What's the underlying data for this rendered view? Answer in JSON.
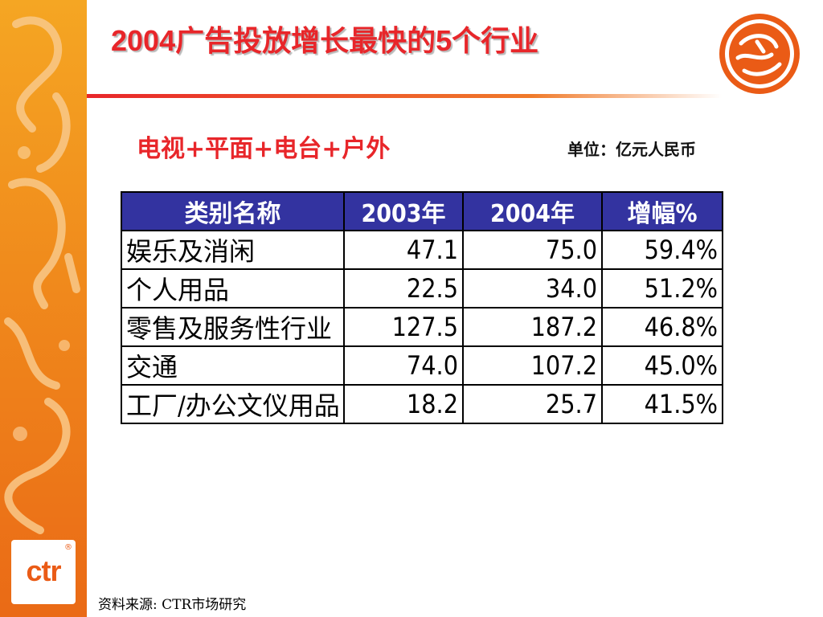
{
  "title": "2004广告投放增长最快的5个行业",
  "subtitle": "电视+平面+电台+户外",
  "unit_label": "单位：亿元人民币",
  "table": {
    "headers": [
      "类别名称",
      "2003年",
      "2004年",
      "增幅%"
    ],
    "rows": [
      [
        "娱乐及消闲",
        "47.1",
        "75.0",
        "59.4%"
      ],
      [
        "个人用品",
        "22.5",
        "34.0",
        "51.2%"
      ],
      [
        "零售及服务性行业",
        "127.5",
        "187.2",
        "46.8%"
      ],
      [
        "交通",
        "74.0",
        "107.2",
        "45.0%"
      ],
      [
        "工厂/办公文仪用品",
        "18.2",
        "25.7",
        "41.5%"
      ]
    ]
  },
  "source": "资料来源: CTR市场研究",
  "logo": {
    "text": "ctr",
    "registered": "®"
  },
  "colors": {
    "title": "#e8262a",
    "table_header": "#3333a0",
    "side_panel": "#f08a1c",
    "seal": "#ea5b16"
  }
}
